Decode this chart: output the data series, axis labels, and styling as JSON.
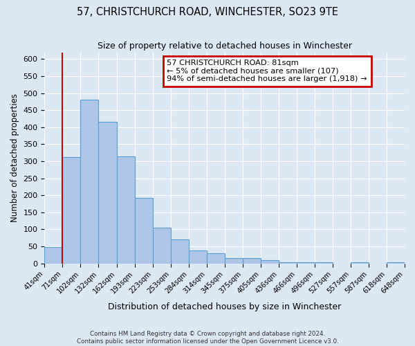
{
  "title": "57, CHRISTCHURCH ROAD, WINCHESTER, SO23 9TE",
  "subtitle": "Size of property relative to detached houses in Winchester",
  "xlabel": "Distribution of detached houses by size in Winchester",
  "ylabel": "Number of detached properties",
  "bin_labels": [
    "41sqm",
    "71sqm",
    "102sqm",
    "132sqm",
    "162sqm",
    "193sqm",
    "223sqm",
    "253sqm",
    "284sqm",
    "314sqm",
    "345sqm",
    "375sqm",
    "405sqm",
    "436sqm",
    "466sqm",
    "496sqm",
    "527sqm",
    "557sqm",
    "587sqm",
    "618sqm",
    "648sqm"
  ],
  "bar_heights": [
    47,
    312,
    480,
    415,
    315,
    192,
    104,
    70,
    37,
    30,
    15,
    15,
    10,
    3,
    3,
    3,
    0,
    3,
    0,
    3
  ],
  "bar_color": "#aec6e8",
  "bar_edge_color": "#5a9fd4",
  "ylim": [
    0,
    620
  ],
  "yticks": [
    0,
    50,
    100,
    150,
    200,
    250,
    300,
    350,
    400,
    450,
    500,
    550,
    600
  ],
  "vline_x": 1,
  "vline_color": "#cc0000",
  "annotation_title": "57 CHRISTCHURCH ROAD: 81sqm",
  "annotation_line1": "← 5% of detached houses are smaller (107)",
  "annotation_line2": "94% of semi-detached houses are larger (1,918) →",
  "annotation_box_color": "#cc0000",
  "footer1": "Contains HM Land Registry data © Crown copyright and database right 2024.",
  "footer2": "Contains public sector information licensed under the Open Government Licence v3.0.",
  "bg_color": "#dde8f5",
  "plot_bg_color": "#dde8f5"
}
